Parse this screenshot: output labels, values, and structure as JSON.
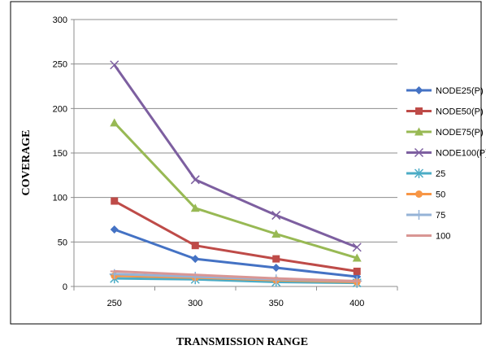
{
  "chart_data": {
    "type": "line",
    "xlabel": "TRANSMISSION RANGE",
    "ylabel": "COVERAGE",
    "categories": [
      "250",
      "300",
      "350",
      "400"
    ],
    "ylim": [
      0,
      300
    ],
    "yticks": [
      "0",
      "50",
      "100",
      "150",
      "200",
      "250",
      "300"
    ],
    "grid": "horizontal",
    "legend_position": "right",
    "series": [
      {
        "name": "NODE25(P)",
        "values": [
          64,
          31,
          21,
          11
        ],
        "color": "#4472c4",
        "marker": "diamond"
      },
      {
        "name": "NODE50(P)",
        "values": [
          96,
          46,
          31,
          17
        ],
        "color": "#be4b48",
        "marker": "square"
      },
      {
        "name": "NODE75(P)",
        "values": [
          184,
          88,
          59,
          32
        ],
        "color": "#98b954",
        "marker": "triangle"
      },
      {
        "name": "NODE100(P)",
        "values": [
          249,
          120,
          80,
          44
        ],
        "color": "#7d5fa0",
        "marker": "x"
      },
      {
        "name": "25",
        "values": [
          9,
          8,
          5,
          4
        ],
        "color": "#4bacc6",
        "marker": "star"
      },
      {
        "name": "50",
        "values": [
          12,
          10,
          7,
          5
        ],
        "color": "#f79646",
        "marker": "circle"
      },
      {
        "name": "75",
        "values": [
          14,
          11,
          8,
          6
        ],
        "color": "#95b3d7",
        "marker": "plus"
      },
      {
        "name": "100",
        "values": [
          17,
          13,
          9,
          6
        ],
        "color": "#d99694",
        "marker": "dash"
      }
    ]
  }
}
